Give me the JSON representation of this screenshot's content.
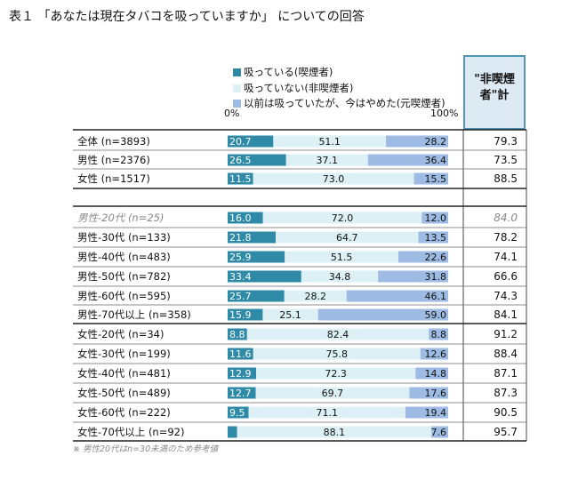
{
  "title": "表１ 「あなたは現在タバコを吸っていますか」 についての回答",
  "legend": [
    {
      "label": "吸っている(喫煙者)",
      "color": "#2e8aa6"
    },
    {
      "label": "吸っていない(非喫煙者)",
      "color": "#ddf0f5"
    },
    {
      "label": "以前は吸っていたが、今はやめた(元喫煙者)",
      "color": "#9dbbe3"
    }
  ],
  "axis": {
    "min_label": "0%",
    "max_label": "100%"
  },
  "total_header": {
    "line1": "\"非喫煙",
    "line2": "者\"計"
  },
  "note": "※ 男性20代はn=30未満のため参考値",
  "chart_data": {
    "type": "bar",
    "orientation": "horizontal",
    "stacked": true,
    "xlim": [
      0,
      100
    ],
    "title": "表１ 「あなたは現在タバコを吸っていますか」 についての回答",
    "categories": [
      "全体 (n=3893)",
      "男性 (n=2376)",
      "女性 (n=1517)",
      "男性-20代 (n=25)",
      "男性-30代 (n=133)",
      "男性-40代 (n=483)",
      "男性-50代 (n=782)",
      "男性-60代 (n=595)",
      "男性-70代以上 (n=358)",
      "女性-20代 (n=34)",
      "女性-30代 (n=199)",
      "女性-40代 (n=481)",
      "女性-50代 (n=489)",
      "女性-60代 (n=222)",
      "女性-70代以上 (n=92)"
    ],
    "series": [
      {
        "name": "吸っている(喫煙者)",
        "values": [
          "20.7",
          "26.5",
          "11.5",
          "16.0",
          "21.8",
          "25.9",
          "33.4",
          "25.7",
          "15.9",
          "8.8",
          "11.6",
          "12.9",
          "12.7",
          "9.5",
          "4.3"
        ]
      },
      {
        "name": "吸っていない(非喫煙者)",
        "values": [
          "51.1",
          "37.1",
          "73.0",
          "72.0",
          "64.7",
          "51.5",
          "34.8",
          "28.2",
          "25.1",
          "82.4",
          "75.8",
          "72.3",
          "69.7",
          "71.1",
          "88.1"
        ]
      },
      {
        "name": "以前は吸っていたが、今はやめた(元喫煙者)",
        "values": [
          "28.2",
          "36.4",
          "15.5",
          "12.0",
          "13.5",
          "22.6",
          "31.8",
          "46.1",
          "59.0",
          "8.8",
          "12.6",
          "14.8",
          "17.6",
          "19.4",
          "7.6"
        ]
      }
    ],
    "totals_header": "\"非喫煙者\"計",
    "totals": [
      "79.3",
      "73.5",
      "88.5",
      "84.0",
      "78.2",
      "74.1",
      "66.6",
      "74.3",
      "84.1",
      "91.2",
      "88.4",
      "87.1",
      "87.3",
      "90.5",
      "95.7"
    ],
    "reference_rows": [
      3
    ],
    "hidden_value_labels": [
      [
        14,
        0
      ]
    ]
  }
}
